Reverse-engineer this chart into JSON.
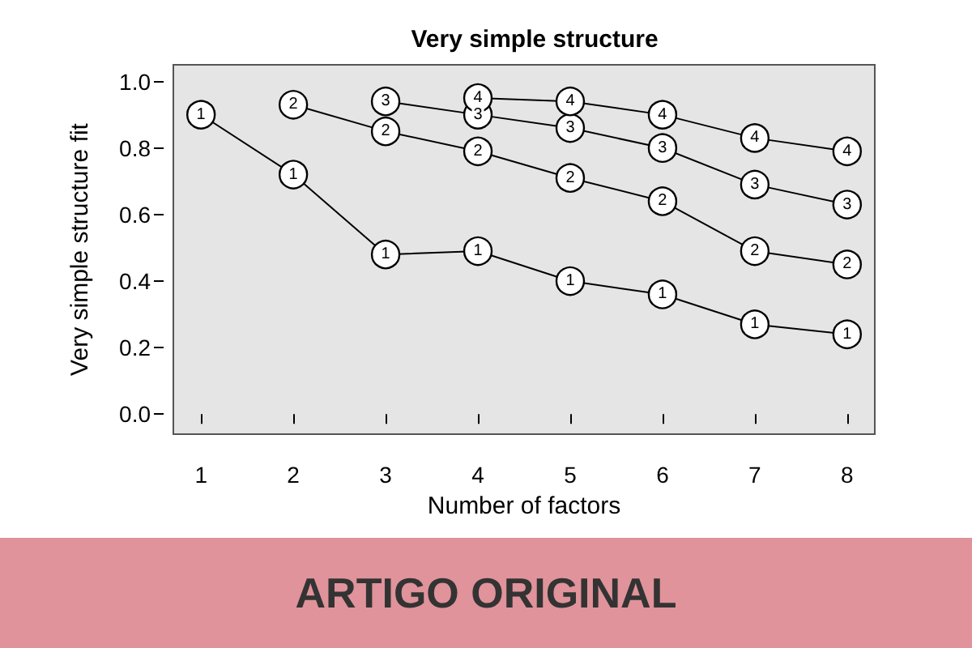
{
  "chart_data": {
    "type": "line",
    "title": "Very simple structure",
    "xlabel": "Number of factors",
    "ylabel": "Very simple structure fit",
    "annotations": [
      "ARTIGO ORIGINAL"
    ],
    "xlim": [
      0.7,
      8.3
    ],
    "xticks": [
      1,
      2,
      3,
      4,
      5,
      6,
      7,
      8
    ],
    "ylim": [
      -0.06,
      1.05
    ],
    "yticks": [
      {
        "value": 0,
        "label": "0.0"
      },
      0.2,
      0.4,
      0.6,
      0.8,
      {
        "value": 1,
        "label": "1.0"
      }
    ],
    "grid": false,
    "legend": false,
    "marker": "circle",
    "line_style": "solid",
    "series": [
      {
        "name": "1",
        "color": "#000000",
        "x": [
          1,
          2,
          3,
          4,
          5,
          6,
          7,
          8
        ],
        "values": [
          0.9,
          0.72,
          0.48,
          0.49,
          0.4,
          0.36,
          0.27,
          0.24
        ]
      },
      {
        "name": "2",
        "color": "#000000",
        "x": [
          2,
          3,
          4,
          5,
          6,
          7,
          8
        ],
        "values": [
          0.93,
          0.85,
          0.79,
          0.71,
          0.64,
          0.49,
          0.45
        ]
      },
      {
        "name": "3",
        "color": "#000000",
        "x": [
          3,
          4,
          5,
          6,
          7,
          8
        ],
        "values": [
          0.94,
          0.9,
          0.86,
          0.8,
          0.69,
          0.63
        ]
      },
      {
        "name": "4",
        "color": "#000000",
        "x": [
          4,
          5,
          6,
          7,
          8
        ],
        "values": [
          0.95,
          0.94,
          0.9,
          0.83,
          0.79
        ]
      }
    ]
  }
}
